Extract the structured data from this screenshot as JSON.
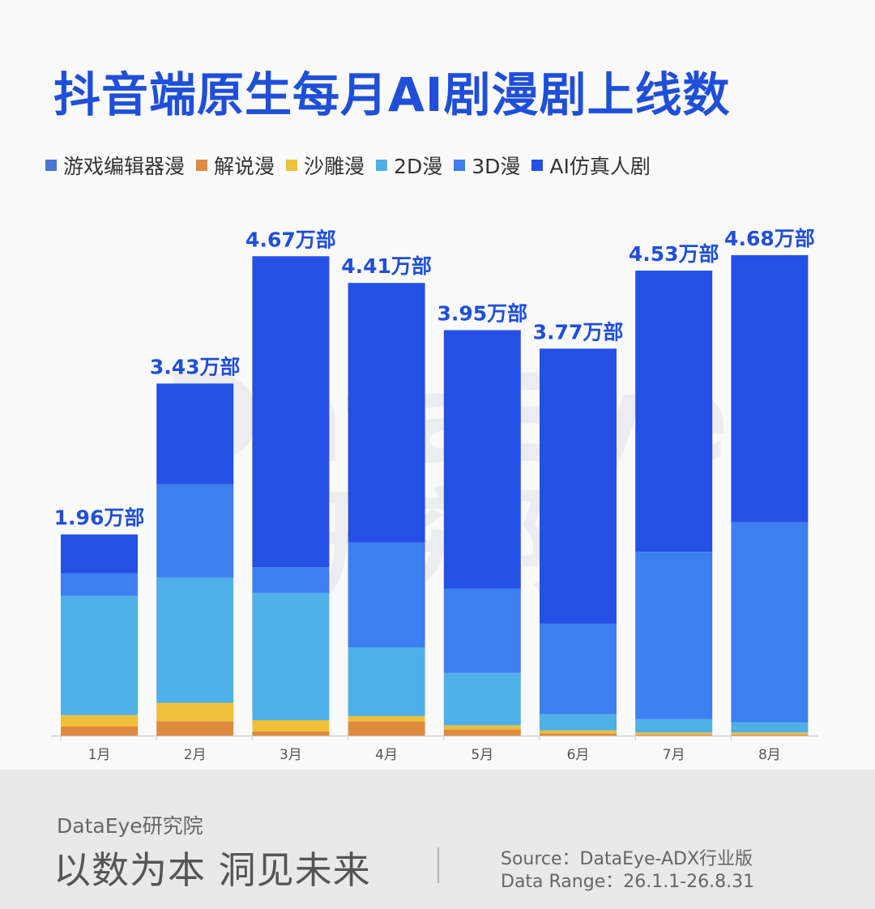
{
  "title": "抖音端原生每月AI剧漫剧上线数",
  "legend": [
    {
      "label": "游戏编辑器漫",
      "color": "#4a74d4"
    },
    {
      "label": "解说漫",
      "color": "#e08a3e"
    },
    {
      "label": "沙雕漫",
      "color": "#eec03c"
    },
    {
      "label": "2D漫",
      "color": "#4fb0e8"
    },
    {
      "label": "3D漫",
      "color": "#3d7ef0"
    },
    {
      "label": "AI仿真人剧",
      "color": "#2450e6"
    }
  ],
  "watermark": {
    "line1": "DataEye",
    "line2": "研究院"
  },
  "chart_data": {
    "type": "bar",
    "stacked": true,
    "title": "抖音端原生每月AI剧漫剧上线数",
    "categories": [
      "1月",
      "2月",
      "3月",
      "4月",
      "5月",
      "6月",
      "7月",
      "8月"
    ],
    "unit": "万部",
    "ylim": [
      0,
      4.68
    ],
    "totals": [
      1.96,
      3.43,
      4.67,
      4.41,
      3.95,
      3.77,
      4.53,
      4.68
    ],
    "total_labels": [
      "1.96万部",
      "3.43万部",
      "4.67万部",
      "4.41万部",
      "3.95万部",
      "3.77万部",
      "4.53万部",
      "4.68万部"
    ],
    "series": [
      {
        "name": "游戏编辑器漫",
        "color": "#4a74d4",
        "values": [
          0,
          0,
          0,
          0,
          0,
          0,
          0,
          0
        ]
      },
      {
        "name": "解说漫",
        "color": "#e08a3e",
        "values": [
          0.09,
          0.14,
          0.04,
          0.14,
          0.06,
          0.02,
          0.01,
          0.01
        ]
      },
      {
        "name": "沙雕漫",
        "color": "#eec03c",
        "values": [
          0.11,
          0.18,
          0.11,
          0.05,
          0.04,
          0.03,
          0.02,
          0.02
        ]
      },
      {
        "name": "2D漫",
        "color": "#4fb0e8",
        "values": [
          1.16,
          1.22,
          1.24,
          0.67,
          0.51,
          0.16,
          0.13,
          0.1
        ]
      },
      {
        "name": "3D漫",
        "color": "#3d7ef0",
        "values": [
          0.22,
          0.91,
          0.25,
          1.02,
          0.82,
          0.88,
          1.63,
          1.95
        ]
      },
      {
        "name": "AI仿真人剧",
        "color": "#2450e6",
        "values": [
          0.38,
          0.98,
          3.03,
          2.53,
          2.52,
          2.68,
          2.74,
          2.6
        ]
      }
    ],
    "grid": false,
    "legend_position": "top-left"
  },
  "footer": {
    "brand": "DataEye研究院",
    "slogan": "以数为本 洞见未来",
    "source": "Source：DataEye-ADX行业版",
    "data_range": "Data Range：26.1.1-26.8.31"
  }
}
